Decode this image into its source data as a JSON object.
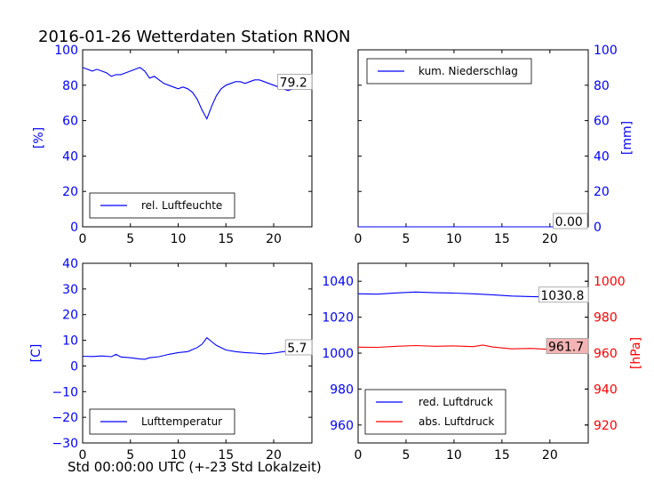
{
  "title": "2016-01-26 Wetterdaten Station RNON",
  "xlabel": "Std 00:00:00 UTC (+-23 Std Lokalzeit)",
  "colors": {
    "blue": "#0000ff",
    "red": "#ff0000",
    "last_box_red": "#f4b4b4"
  },
  "chart_data": [
    {
      "type": "line",
      "panel": "top-left",
      "ylabel": "[%]",
      "xlim": [
        0,
        24
      ],
      "ylim": [
        0,
        100
      ],
      "xticks": [
        "0",
        "5",
        "10",
        "15",
        "20"
      ],
      "yticks": [
        "0",
        "20",
        "40",
        "60",
        "80",
        "100"
      ],
      "legend": "lower-left",
      "last_value_label": "79.2",
      "series": [
        {
          "name": "rel. Luftfeuchte",
          "color": "#0000ff",
          "x": [
            0,
            0.5,
            1,
            1.5,
            2,
            2.5,
            3,
            3.5,
            4,
            4.5,
            5,
            5.5,
            6,
            6.5,
            7,
            7.5,
            8,
            8.5,
            9,
            9.5,
            10,
            10.5,
            11,
            11.5,
            12,
            12.5,
            13,
            13.5,
            14,
            14.5,
            15,
            15.5,
            16,
            16.5,
            17,
            17.5,
            18,
            18.5,
            19,
            19.5,
            20,
            20.5,
            21,
            21.5,
            22,
            22.5,
            23,
            23.5,
            24
          ],
          "y": [
            90,
            89,
            88,
            89,
            88,
            87,
            85,
            86,
            86,
            87,
            88,
            89,
            90,
            88,
            84,
            85,
            83,
            81,
            80,
            79,
            78,
            79,
            78,
            76,
            72,
            66,
            61,
            68,
            74,
            78,
            80,
            81,
            82,
            82,
            81,
            82,
            83,
            83,
            82,
            81,
            80,
            79,
            78,
            77,
            78,
            79,
            79,
            79,
            79.2
          ]
        }
      ]
    },
    {
      "type": "line",
      "panel": "top-right",
      "ylabel": "[mm]",
      "xlim": [
        0,
        24
      ],
      "ylim": [
        0,
        100
      ],
      "xticks": [
        "0",
        "5",
        "10",
        "15",
        "20"
      ],
      "yticks": [
        "0",
        "20",
        "40",
        "60",
        "80",
        "100"
      ],
      "legend": "upper-left",
      "last_value_label": "0.00",
      "series": [
        {
          "name": "kum. Niederschlag",
          "color": "#0000ff",
          "x": [
            0,
            24
          ],
          "y": [
            0,
            0
          ]
        }
      ]
    },
    {
      "type": "line",
      "panel": "bottom-left",
      "ylabel": "[C]",
      "xlim": [
        0,
        24
      ],
      "ylim": [
        -30,
        40
      ],
      "xticks": [
        "0",
        "5",
        "10",
        "15",
        "20"
      ],
      "yticks": [
        "−30",
        "−20",
        "−10",
        "0",
        "10",
        "20",
        "30",
        "40"
      ],
      "yticks_values": [
        -30,
        -20,
        -10,
        0,
        10,
        20,
        30,
        40
      ],
      "legend": "lower-left",
      "last_value_label": "5.7",
      "series": [
        {
          "name": "Lufttemperatur",
          "color": "#0000ff",
          "x": [
            0,
            1,
            2,
            3,
            3.5,
            4,
            5,
            6,
            6.5,
            7,
            8,
            9,
            10,
            11,
            11.5,
            12,
            12.5,
            13,
            13.5,
            14,
            15,
            16,
            17,
            18,
            19,
            20,
            21,
            22,
            23,
            24
          ],
          "y": [
            3.8,
            3.7,
            3.9,
            3.6,
            4.5,
            3.5,
            3.2,
            2.7,
            2.6,
            3.2,
            3.6,
            4.5,
            5.2,
            5.6,
            6.4,
            7.2,
            8.5,
            11,
            9.5,
            8,
            6.2,
            5.6,
            5.2,
            5.0,
            4.7,
            5.0,
            5.6,
            5.9,
            5.8,
            5.7
          ]
        }
      ]
    },
    {
      "type": "line",
      "panel": "bottom-right",
      "ylabel": "[hPa]",
      "xlim": [
        0,
        24
      ],
      "ylim": [
        950,
        1050
      ],
      "ylim_right": [
        910,
        1010
      ],
      "xticks": [
        "0",
        "5",
        "10",
        "15",
        "20"
      ],
      "yticks": [
        "960",
        "980",
        "1000",
        "1020",
        "1040"
      ],
      "yticks_values": [
        960,
        980,
        1000,
        1020,
        1040
      ],
      "yticks_right": [
        "920",
        "940",
        "960",
        "980",
        "1000"
      ],
      "yticks_right_values": [
        920,
        940,
        960,
        980,
        1000
      ],
      "legend": "lower-left",
      "last_value_label": "1030.8",
      "last_value_label_right": "961.7",
      "series": [
        {
          "name": "red. Luftdruck",
          "color": "#0000ff",
          "axis": "left",
          "x": [
            0,
            2,
            4,
            6,
            8,
            10,
            12,
            14,
            16,
            18,
            20,
            22,
            24
          ],
          "y": [
            1033,
            1032.8,
            1033.5,
            1034,
            1033.6,
            1033.4,
            1033,
            1032.5,
            1031.8,
            1031.5,
            1031.2,
            1031,
            1030.8
          ]
        },
        {
          "name": "abs. Luftdruck",
          "color": "#ff0000",
          "axis": "right",
          "x": [
            0,
            2,
            4,
            6,
            8,
            10,
            12,
            13,
            14,
            16,
            18,
            20,
            22,
            24
          ],
          "y": [
            963.3,
            963.2,
            963.8,
            964.2,
            963.8,
            964,
            963.6,
            964.5,
            963.4,
            962.4,
            962.6,
            962.1,
            961.9,
            961.7
          ]
        }
      ]
    }
  ]
}
